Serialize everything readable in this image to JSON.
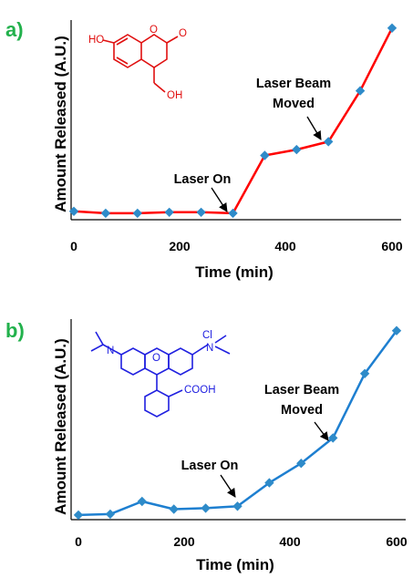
{
  "chart_data": [
    {
      "panel": "a)",
      "type": "line",
      "xlabel": "Time (min)",
      "ylabel": "Amount Released (A.U.)",
      "xlim": [
        0,
        600
      ],
      "ylim": [
        0,
        100
      ],
      "xticks": [
        "0",
        "200",
        "400",
        "600"
      ],
      "line_color": "#ff0000",
      "marker_color": "#2e8bc9",
      "series": [
        {
          "x": [
            0,
            60,
            120,
            180,
            240,
            300,
            360,
            420,
            480,
            540,
            600
          ],
          "values": [
            1.5,
            0.5,
            0.5,
            1.0,
            1.0,
            0.5,
            30,
            33,
            37,
            63,
            95
          ]
        }
      ],
      "annotations": [
        {
          "text": [
            "Laser On"
          ],
          "target_x": 300,
          "target_y": 0.5
        },
        {
          "text": [
            "Laser Beam",
            "Moved"
          ],
          "target_x": 480,
          "target_y": 37
        }
      ],
      "structure": {
        "color": "#e01010",
        "labels": [
          "HO",
          "O",
          "O",
          "OH"
        ]
      }
    },
    {
      "panel": "b)",
      "type": "line",
      "xlabel": "Time (min)",
      "ylabel": "Amount Released (A.U.)",
      "xlim": [
        0,
        600
      ],
      "ylim": [
        0,
        100
      ],
      "xticks": [
        "0",
        "200",
        "400",
        "600"
      ],
      "line_color": "#1e7fd0",
      "marker_color": "#2e8bc9",
      "series": [
        {
          "x": [
            0,
            60,
            120,
            180,
            240,
            300,
            360,
            420,
            480,
            540,
            600
          ],
          "values": [
            0.5,
            1.0,
            7.5,
            3.5,
            4.0,
            5.0,
            17,
            27,
            40,
            73,
            95
          ]
        }
      ],
      "annotations": [
        {
          "text": [
            "Laser On"
          ],
          "target_x": 300,
          "target_y": 5.0
        },
        {
          "text": [
            "Laser Beam",
            "Moved"
          ],
          "target_x": 480,
          "target_y": 40
        }
      ],
      "structure": {
        "color": "#2020e0",
        "labels": [
          "N",
          "O",
          "Cl",
          "N",
          "COOH"
        ]
      }
    }
  ]
}
